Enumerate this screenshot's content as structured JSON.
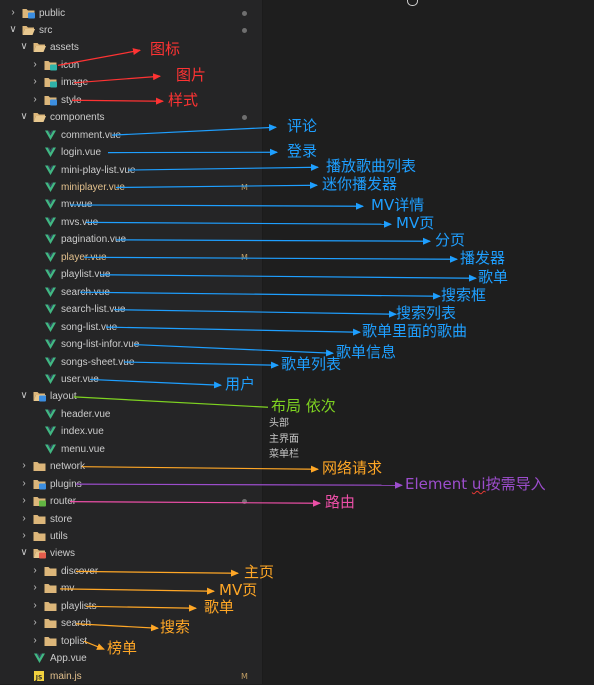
{
  "colors": {
    "folder": "#dcb67a",
    "vue": "#41b883",
    "js": "#f1d13e",
    "text": "#cccccc",
    "modified": "#e2c08d",
    "red": "#ff3333",
    "blue": "#1e9fff",
    "green": "#7ed321",
    "orange": "#ffa726",
    "purple": "#9c4dcc",
    "magenta": "#ec4fa7"
  },
  "tree": [
    {
      "label": "public",
      "depth": 0,
      "kind": "folder",
      "open": false,
      "variant": "blue",
      "dot": true
    },
    {
      "label": "src",
      "depth": 0,
      "kind": "folder",
      "open": true,
      "variant": "plain",
      "dot": true
    },
    {
      "label": "assets",
      "depth": 1,
      "kind": "folder",
      "open": true,
      "variant": "plain"
    },
    {
      "label": "icon",
      "depth": 2,
      "kind": "folder",
      "open": false,
      "variant": "teal"
    },
    {
      "label": "image",
      "depth": 2,
      "kind": "folder",
      "open": false,
      "variant": "teal"
    },
    {
      "label": "style",
      "depth": 2,
      "kind": "folder",
      "open": false,
      "variant": "blue"
    },
    {
      "label": "components",
      "depth": 1,
      "kind": "folder",
      "open": true,
      "variant": "plain",
      "dot": true
    },
    {
      "label": "comment.vue",
      "depth": 2,
      "kind": "vue"
    },
    {
      "label": "login.vue",
      "depth": 2,
      "kind": "vue"
    },
    {
      "label": "mini-play-list.vue",
      "depth": 2,
      "kind": "vue"
    },
    {
      "label": "miniplayer.vue",
      "depth": 2,
      "kind": "vue",
      "modified": true,
      "badge": "M"
    },
    {
      "label": "mv.vue",
      "depth": 2,
      "kind": "vue"
    },
    {
      "label": "mvs.vue",
      "depth": 2,
      "kind": "vue"
    },
    {
      "label": "pagination.vue",
      "depth": 2,
      "kind": "vue"
    },
    {
      "label": "player.vue",
      "depth": 2,
      "kind": "vue",
      "modified": true,
      "badge": "M"
    },
    {
      "label": "playlist.vue",
      "depth": 2,
      "kind": "vue"
    },
    {
      "label": "search.vue",
      "depth": 2,
      "kind": "vue"
    },
    {
      "label": "search-list.vue",
      "depth": 2,
      "kind": "vue"
    },
    {
      "label": "song-list.vue",
      "depth": 2,
      "kind": "vue"
    },
    {
      "label": "song-list-infor.vue",
      "depth": 2,
      "kind": "vue"
    },
    {
      "label": "songs-sheet.vue",
      "depth": 2,
      "kind": "vue"
    },
    {
      "label": "user.vue",
      "depth": 2,
      "kind": "vue"
    },
    {
      "label": "layout",
      "depth": 1,
      "kind": "folder",
      "open": true,
      "variant": "blue"
    },
    {
      "label": "header.vue",
      "depth": 2,
      "kind": "vue"
    },
    {
      "label": "index.vue",
      "depth": 2,
      "kind": "vue"
    },
    {
      "label": "menu.vue",
      "depth": 2,
      "kind": "vue"
    },
    {
      "label": "network",
      "depth": 1,
      "kind": "folder",
      "open": false,
      "variant": "plain"
    },
    {
      "label": "plugins",
      "depth": 1,
      "kind": "folder",
      "open": false,
      "variant": "blue"
    },
    {
      "label": "router",
      "depth": 1,
      "kind": "folder",
      "open": false,
      "variant": "green",
      "dot": true
    },
    {
      "label": "store",
      "depth": 1,
      "kind": "folder",
      "open": false,
      "variant": "plain"
    },
    {
      "label": "utils",
      "depth": 1,
      "kind": "folder",
      "open": false,
      "variant": "plain"
    },
    {
      "label": "views",
      "depth": 1,
      "kind": "folder",
      "open": true,
      "variant": "red"
    },
    {
      "label": "discover",
      "depth": 2,
      "kind": "folder",
      "open": false,
      "variant": "plain"
    },
    {
      "label": "mv",
      "depth": 2,
      "kind": "folder",
      "open": false,
      "variant": "plain"
    },
    {
      "label": "playlists",
      "depth": 2,
      "kind": "folder",
      "open": false,
      "variant": "plain"
    },
    {
      "label": "search",
      "depth": 2,
      "kind": "folder",
      "open": false,
      "variant": "plain"
    },
    {
      "label": "toplist",
      "depth": 2,
      "kind": "folder",
      "open": false,
      "variant": "plain"
    },
    {
      "label": "App.vue",
      "depth": 1,
      "kind": "vue"
    },
    {
      "label": "main.js",
      "depth": 1,
      "kind": "js",
      "modified": true,
      "badge": "M"
    }
  ],
  "annotations": [
    {
      "text": "图标",
      "row": 3,
      "color": "red",
      "size": 15
    },
    {
      "text": "图片",
      "row": 4,
      "color": "red",
      "size": 15
    },
    {
      "text": "样式",
      "row": 5,
      "color": "red",
      "size": 15
    },
    {
      "text": "评论",
      "row": 7,
      "color": "blue",
      "size": 15
    },
    {
      "text": "登录",
      "row": 8,
      "color": "blue",
      "size": 15
    },
    {
      "text": "播放歌曲列表",
      "row": 9,
      "color": "blue",
      "size": 15
    },
    {
      "text": "迷你播发器",
      "row": 10,
      "color": "blue",
      "size": 15
    },
    {
      "text": "MV详情",
      "row": 11,
      "color": "blue",
      "size": 15
    },
    {
      "text": "MV页",
      "row": 12,
      "color": "blue",
      "size": 15
    },
    {
      "text": "分页",
      "row": 13,
      "color": "blue",
      "size": 15
    },
    {
      "text": "播发器",
      "row": 14,
      "color": "blue",
      "size": 15
    },
    {
      "text": "歌单",
      "row": 15,
      "color": "blue",
      "size": 15
    },
    {
      "text": "搜索框",
      "row": 16,
      "color": "blue",
      "size": 15
    },
    {
      "text": "搜索列表",
      "row": 17,
      "color": "blue",
      "size": 15
    },
    {
      "text": "歌单里面的歌曲",
      "row": 18,
      "color": "blue",
      "size": 15
    },
    {
      "text": "歌单信息",
      "row": 19,
      "color": "blue",
      "size": 15
    },
    {
      "text": "歌单列表",
      "row": 20,
      "color": "blue",
      "size": 15
    },
    {
      "text": "用户",
      "row": 21,
      "color": "blue",
      "size": 15
    },
    {
      "text": "布局 依次",
      "row": 22,
      "color": "green",
      "size": 15
    },
    {
      "text": "网络请求",
      "row": 26,
      "color": "orange",
      "size": 15
    },
    {
      "text": "Element ui按需导入",
      "row": 27,
      "color": "purple",
      "size": 15
    },
    {
      "text": "路由",
      "row": 28,
      "color": "magenta",
      "size": 15
    },
    {
      "text": "主页",
      "row": 32,
      "color": "orange",
      "size": 15
    },
    {
      "text": "MV页",
      "row": 33,
      "color": "orange",
      "size": 15
    },
    {
      "text": "歌单",
      "row": 34,
      "color": "orange",
      "size": 15
    },
    {
      "text": "搜索",
      "row": 35,
      "color": "orange",
      "size": 15
    },
    {
      "text": "榜单",
      "row": 36,
      "color": "orange",
      "size": 15
    }
  ],
  "layout_notes": [
    "头部",
    "主界面",
    "菜单栏"
  ]
}
